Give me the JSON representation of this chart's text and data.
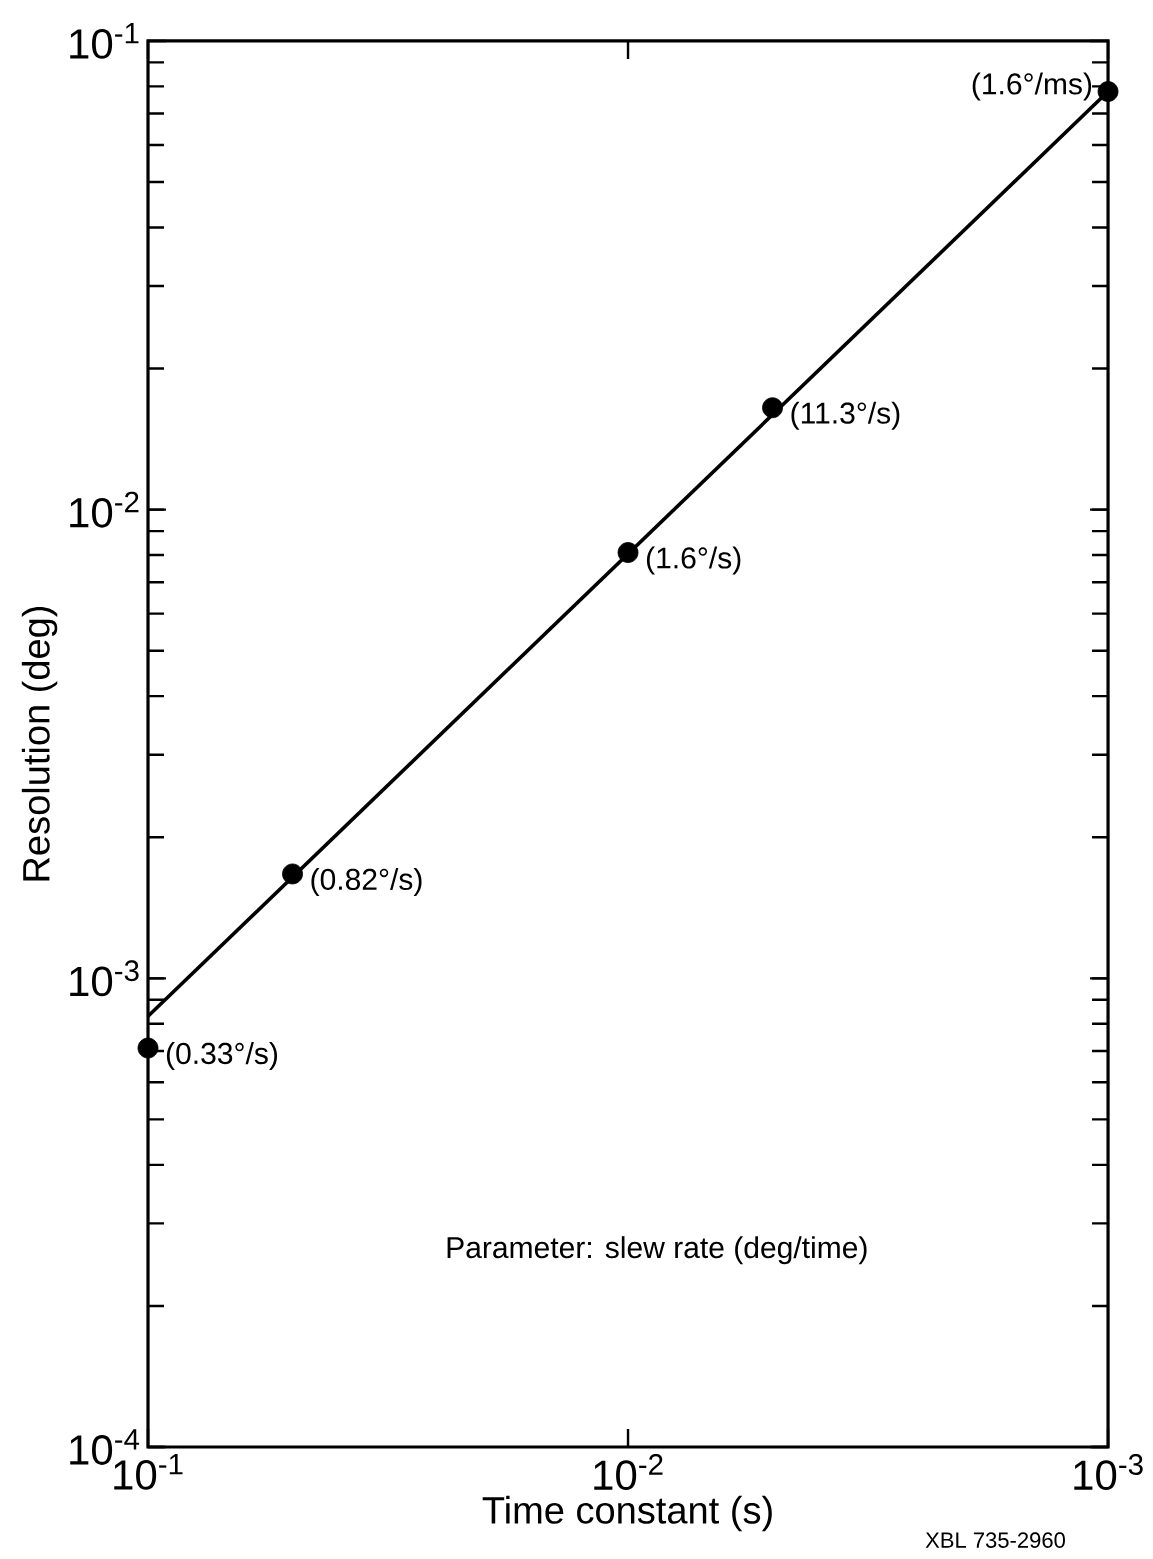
{
  "chart_data": {
    "type": "scatter",
    "xlabel": "Time constant (s)",
    "ylabel": "Resolution (deg)",
    "log": "xy",
    "xlim": [
      0.1,
      0.001
    ],
    "ylim": [
      0.0001,
      0.1
    ],
    "xticks": [
      {
        "value": 0.1,
        "label": "10$^{-1}$"
      },
      {
        "value": 0.01,
        "label": "10$^{-2}$"
      },
      {
        "value": 0.001,
        "label": "10$^{-3}$"
      }
    ],
    "yticks": [
      {
        "value": 0.0001,
        "label": "10$^{-4}$"
      },
      {
        "value": 0.001,
        "label": "10$^{-3}$"
      },
      {
        "value": 0.01,
        "label": "10$^{-2}$"
      },
      {
        "value": 0.1,
        "label": "10$^{-1}$"
      }
    ],
    "grid": false,
    "series": [
      {
        "type": "line",
        "color": "#000000",
        "line_style": "solid",
        "marker": "none",
        "x": [
          0.1,
          0.001
        ],
        "values": [
          0.00083,
          0.078
        ]
      },
      {
        "color": "#000000",
        "marker": "circle",
        "x": [
          0.1,
          0.05,
          0.01,
          0.005,
          0.001
        ],
        "values": [
          0.00071,
          0.00167,
          0.0081,
          0.0165,
          0.078
        ]
      }
    ],
    "annotations": [
      {
        "text": "(0.33°/s)",
        "x": 0.1,
        "y": 0.00071
      },
      {
        "text": "(0.82°/s)",
        "x": 0.05,
        "y": 0.00167
      },
      {
        "text": "(1.6°/s)",
        "x": 0.01,
        "y": 0.0081
      },
      {
        "text": "(11.3°/s)",
        "x": 0.005,
        "y": 0.0165
      },
      {
        "text": "(1.6°/ms)",
        "x": 0.001,
        "y": 0.078
      },
      "Parameter: slew rate (deg/time)",
      "XBL 735-2960"
    ]
  }
}
